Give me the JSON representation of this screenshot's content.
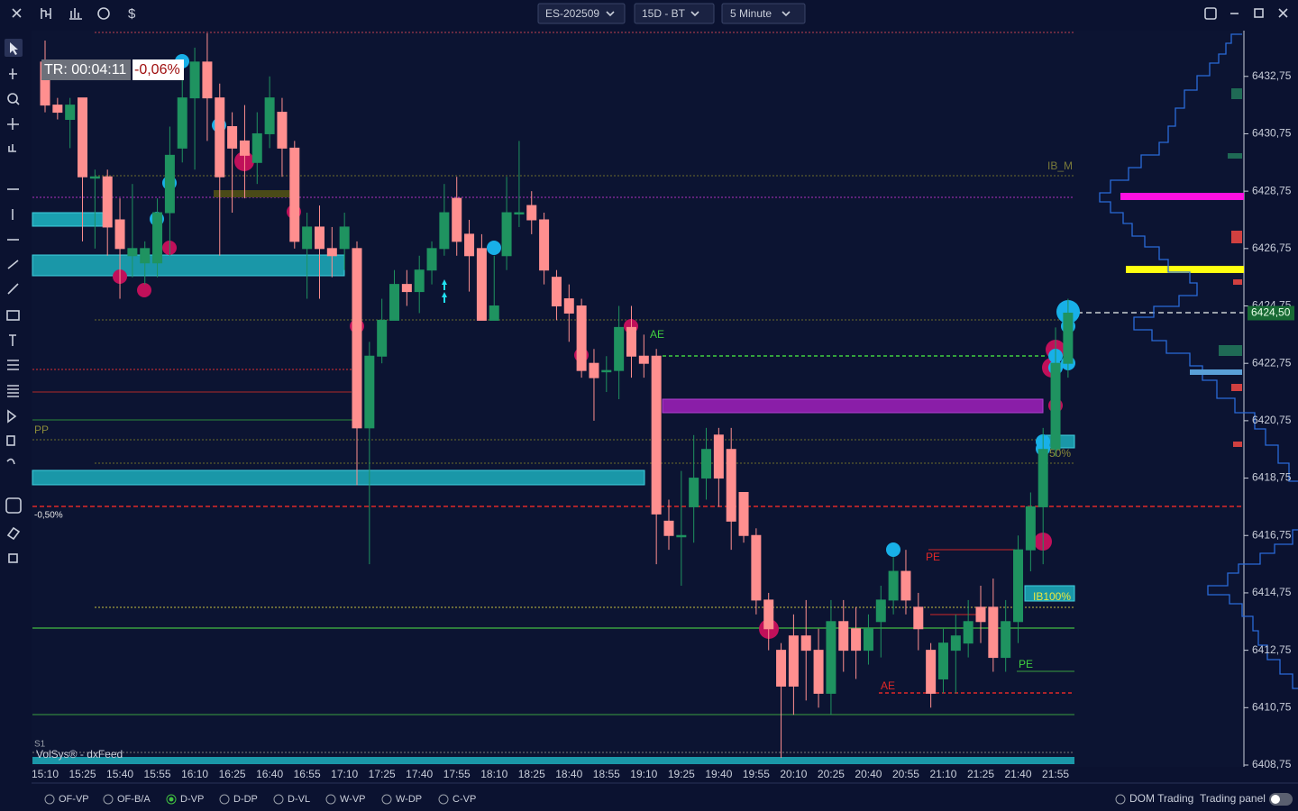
{
  "ui": {
    "symbol": "ES-202509",
    "range": "15D - BT",
    "interval": "5 Minute",
    "currency_icon": "$",
    "timer": "TR: 00:04:11",
    "change": "-0,06%",
    "feed": "VolSys® - dxFeed",
    "tabs": [
      "OF-VP",
      "OF-B/A",
      "D-VP",
      "D-DP",
      "D-VL",
      "W-VP",
      "W-DP",
      "C-VP"
    ],
    "active_tab": 2,
    "footer": [
      "DOM Trading",
      "Trading panel"
    ]
  },
  "chart_data": {
    "type": "candlestick",
    "categories": [
      "15:10",
      null,
      null,
      "15:25",
      null,
      null,
      "15:40",
      null,
      null,
      "15:55",
      null,
      null,
      "16:10",
      null,
      null,
      "16:25",
      null,
      null,
      "16:40",
      null,
      null,
      "16:55",
      null,
      null,
      "17:10",
      null,
      null,
      "17:25",
      null,
      null,
      "17:40",
      null,
      null,
      "17:55",
      null,
      null,
      "18:10",
      null,
      null,
      "18:25",
      null,
      null,
      "18:40",
      null,
      null,
      "18:55",
      null,
      null,
      "19:10",
      null,
      null,
      "19:25",
      null,
      null,
      "19:40",
      null,
      null,
      "19:55",
      null,
      null,
      "20:10",
      null,
      null,
      "20:25",
      null,
      null,
      "20:40",
      null,
      null,
      "20:55",
      null,
      null,
      "21:10",
      null,
      null,
      "21:25",
      null,
      null,
      "21:40",
      null,
      null,
      "21:55",
      null
    ],
    "open": [
      6433.25,
      6431.75,
      6431.25,
      6432.0,
      6429.25,
      6429.25,
      6427.75,
      6426.5,
      6426.25,
      6426.25,
      6428.0,
      6430.25,
      6432.0,
      6433.25,
      6432.0,
      6431.0,
      6430.5,
      6429.75,
      6430.75,
      6431.5,
      6430.25,
      6426.75,
      6427.5,
      6426.75,
      6426.75,
      6426.75,
      6420.5,
      6423.0,
      6424.25,
      6425.5,
      6425.25,
      6426.0,
      6426.75,
      6428.5,
      6427.25,
      6426.75,
      6424.25,
      6426.5,
      6428.0,
      6428.25,
      6427.75,
      6425.75,
      6425.0,
      6424.75,
      6422.75,
      6422.5,
      6422.5,
      6424.0,
      6423.0,
      6423.0,
      6417.25,
      6416.75,
      6417.75,
      6418.75,
      6420.25,
      6419.75,
      6418.25,
      6416.75,
      6414.5,
      6412.75,
      6413.25,
      6413.25,
      6412.75,
      6411.25,
      6413.75,
      6413.5,
      6412.75,
      6413.75,
      6414.5,
      6415.5,
      6414.25,
      6412.75,
      6411.75,
      6412.75,
      6413.0,
      6414.25,
      6414.25,
      6412.5,
      6413.75,
      6416.25,
      6417.75,
      6419.75,
      6422.75
    ],
    "high": [
      6434.0,
      6432.0,
      6432.0,
      6432.0,
      6429.5,
      6429.5,
      6428.5,
      6429.0,
      6427.0,
      6428.5,
      6431.0,
      6433.0,
      6433.75,
      6434.25,
      6432.5,
      6431.5,
      6431.75,
      6431.5,
      6432.75,
      6432.0,
      6430.5,
      6428.0,
      6428.25,
      6427.5,
      6428.0,
      6427.0,
      6423.5,
      6425.0,
      6426.0,
      6426.0,
      6426.5,
      6427.0,
      6429.0,
      6429.25,
      6427.75,
      6427.25,
      6426.5,
      6429.25,
      6430.5,
      6428.75,
      6428.0,
      6426.0,
      6425.5,
      6425.0,
      6423.25,
      6423.0,
      6424.75,
      6424.75,
      6423.75,
      6423.25,
      6418.0,
      6419.0,
      6420.25,
      6420.5,
      6420.5,
      6420.5,
      6418.25,
      6417.0,
      6414.75,
      6413.0,
      6414.0,
      6414.5,
      6413.5,
      6414.5,
      6414.5,
      6414.25,
      6414.0,
      6415.0,
      6416.0,
      6416.25,
      6414.75,
      6413.0,
      6413.5,
      6414.0,
      6414.5,
      6415.0,
      6415.25,
      6414.5,
      6416.75,
      6418.25,
      6420.5,
      6424.0,
      6425.0
    ],
    "low": [
      6431.5,
      6431.25,
      6430.25,
      6427.0,
      6426.75,
      6426.5,
      6425.0,
      6425.75,
      6425.5,
      6425.75,
      6426.5,
      6429.75,
      6429.5,
      6430.5,
      6426.5,
      6428.0,
      6428.5,
      6429.0,
      6430.25,
      6429.25,
      6426.75,
      6425.0,
      6425.0,
      6425.75,
      6426.0,
      6418.5,
      6415.75,
      6422.75,
      6424.25,
      6424.75,
      6424.5,
      6425.5,
      6426.5,
      6426.5,
      6425.25,
      6424.25,
      6424.25,
      6426.0,
      6427.5,
      6427.25,
      6425.5,
      6424.25,
      6423.5,
      6422.25,
      6420.75,
      6421.75,
      6421.5,
      6422.25,
      6422.25,
      6415.75,
      6416.25,
      6415.0,
      6416.5,
      6418.0,
      6417.75,
      6416.25,
      6416.5,
      6414.0,
      6412.75,
      6409.0,
      6410.5,
      6411.0,
      6410.75,
      6410.5,
      6412.0,
      6411.75,
      6412.25,
      6412.5,
      6414.0,
      6414.0,
      6412.75,
      6410.75,
      6411.25,
      6411.25,
      6412.5,
      6413.0,
      6412.0,
      6412.0,
      6413.0,
      6415.5,
      6415.75,
      6419.5,
      6422.25
    ],
    "close": [
      6431.75,
      6431.5,
      6431.75,
      6429.25,
      6429.25,
      6427.5,
      6426.75,
      6426.75,
      6426.75,
      6428.0,
      6430.0,
      6432.0,
      6433.25,
      6432.0,
      6429.25,
      6430.25,
      6430.0,
      6430.75,
      6432.0,
      6430.25,
      6427.0,
      6427.5,
      6426.75,
      6426.5,
      6427.5,
      6420.5,
      6423.0,
      6424.25,
      6425.5,
      6425.25,
      6426.0,
      6426.75,
      6428.0,
      6427.0,
      6426.5,
      6424.25,
      6424.75,
      6428.0,
      6428.0,
      6427.75,
      6426.0,
      6424.75,
      6424.5,
      6422.5,
      6422.25,
      6422.5,
      6424.0,
      6423.0,
      6422.75,
      6417.5,
      6416.75,
      6416.75,
      6418.75,
      6419.75,
      6418.75,
      6417.25,
      6416.75,
      6414.5,
      6413.5,
      6411.5,
      6411.5,
      6412.75,
      6411.25,
      6413.75,
      6412.75,
      6412.75,
      6413.5,
      6414.5,
      6415.5,
      6414.5,
      6413.5,
      6411.25,
      6413.0,
      6413.25,
      6413.75,
      6413.75,
      6412.5,
      6413.75,
      6416.25,
      6417.75,
      6419.75,
      6422.75,
      6424.5
    ],
    "up_color": "#1f9360",
    "down_color": "#ff8f8f",
    "ylim": [
      6408.75,
      6434.25
    ],
    "yticks": [
      {
        "value": 6432.75,
        "label": "6432,75"
      },
      {
        "value": 6430.75,
        "label": "6430,75"
      },
      {
        "value": 6428.75,
        "label": "6428,75"
      },
      {
        "value": 6426.75,
        "label": "6426,75"
      },
      {
        "value": 6424.75,
        "label": "6424,75"
      },
      {
        "value": 6422.75,
        "label": "6422,75"
      },
      {
        "value": 6420.75,
        "label": "6420,75"
      },
      {
        "value": 6418.75,
        "label": "6418,75"
      },
      {
        "value": 6416.75,
        "label": "6416,75"
      },
      {
        "value": 6414.75,
        "label": "6414,75"
      },
      {
        "value": 6412.75,
        "label": "6412,75"
      },
      {
        "value": 6410.75,
        "label": "6410,75"
      },
      {
        "value": 6408.75,
        "label": "6408,75"
      }
    ],
    "last_price": {
      "value": 6424.5,
      "label": "6424,50"
    },
    "annotations": [
      "IB_M",
      "PP",
      "-0,50%",
      "AE",
      "PE",
      "PE",
      "AE",
      "50%",
      "IB100%",
      "S1"
    ]
  }
}
